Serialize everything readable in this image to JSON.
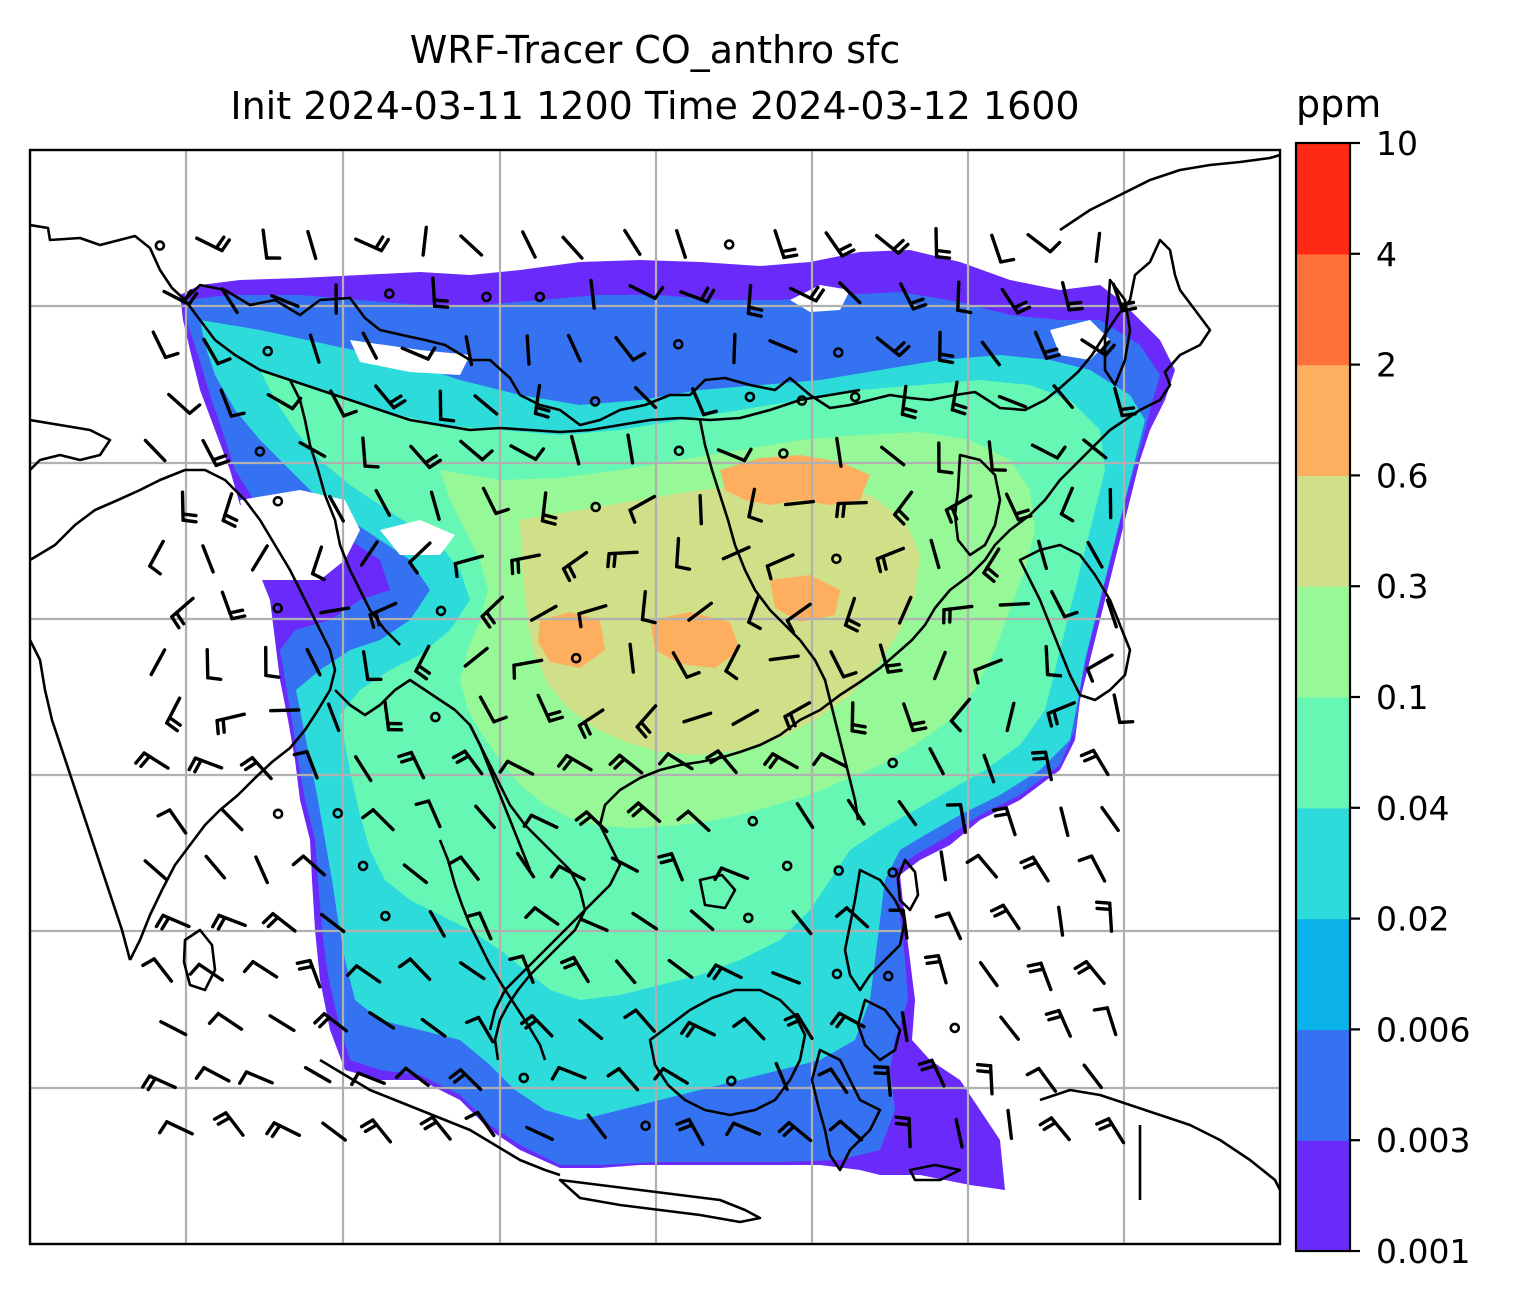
{
  "title": {
    "line1": "WRF-Tracer CO_anthro sfc",
    "line2": "Init 2024-03-11 1200 Time 2024-03-12 1600"
  },
  "colorbar": {
    "unit": "ppm",
    "tick_labels": [
      "0.001",
      "0.003",
      "0.006",
      "0.02",
      "0.04",
      "0.1",
      "0.3",
      "0.6",
      "2",
      "4",
      "10"
    ],
    "colors": [
      "#6a2bfa",
      "#3572f1",
      "#0bb1e9",
      "#2edbdb",
      "#66f7b4",
      "#97f897",
      "#cfe089",
      "#fdaf5f",
      "#fe7239",
      "#ff2a14"
    ]
  },
  "map": {
    "field_colors": {
      "lowest": "#6a2bfa",
      "low": "#3572f1",
      "mid_low": "#2edbdb",
      "mid": "#66f7b4",
      "mid_high": "#97f897",
      "high": "#cfe089",
      "highest": "#fdaf5f"
    },
    "gridline_color": "#b0b0b0",
    "coast_color": "#000000"
  }
}
